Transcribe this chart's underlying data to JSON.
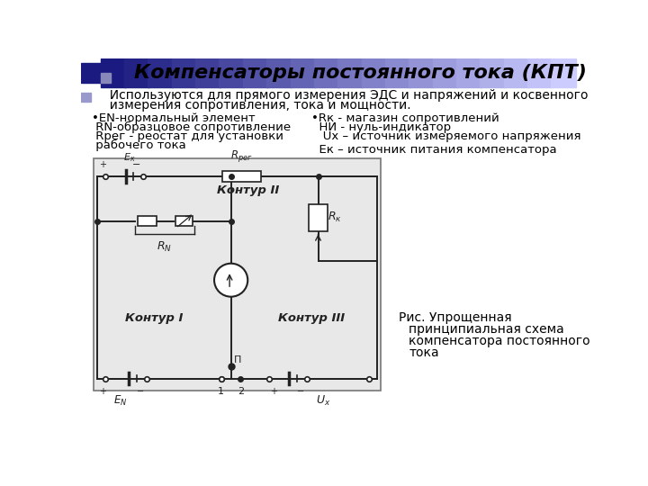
{
  "title": "Компенсаторы постоянного тока (КПТ)",
  "subtitle_line1": "  Используются для прямого измерения ЭДС и напряжений и косвенного",
  "subtitle_line2": "  измерения сопротивления, тока и мощности.",
  "bullet_left_line1": "•EN-нормальный элемент",
  "bullet_left_line2": " RN-образцовое сопротивление",
  "bullet_left_line3": " Rрег - реостат для установки",
  "bullet_left_line4": " рабочего тока",
  "bullet_right_line1": "•Rк - магазин сопротивлений",
  "bullet_right_line2": "  НИ - нуль-индикатор",
  "bullet_right_line3": "   Ux – источник измеряемого напряжения",
  "bullet_right_line5": "  Ек – источник питания компенсатора",
  "caption_line1": "Рис. Упрощенная",
  "caption_line2": "    принципиальная схема",
  "caption_line3": "    компенсатора постоянного",
  "caption_line4": "    тока",
  "bg_color": "#ffffff",
  "text_color": "#000000"
}
